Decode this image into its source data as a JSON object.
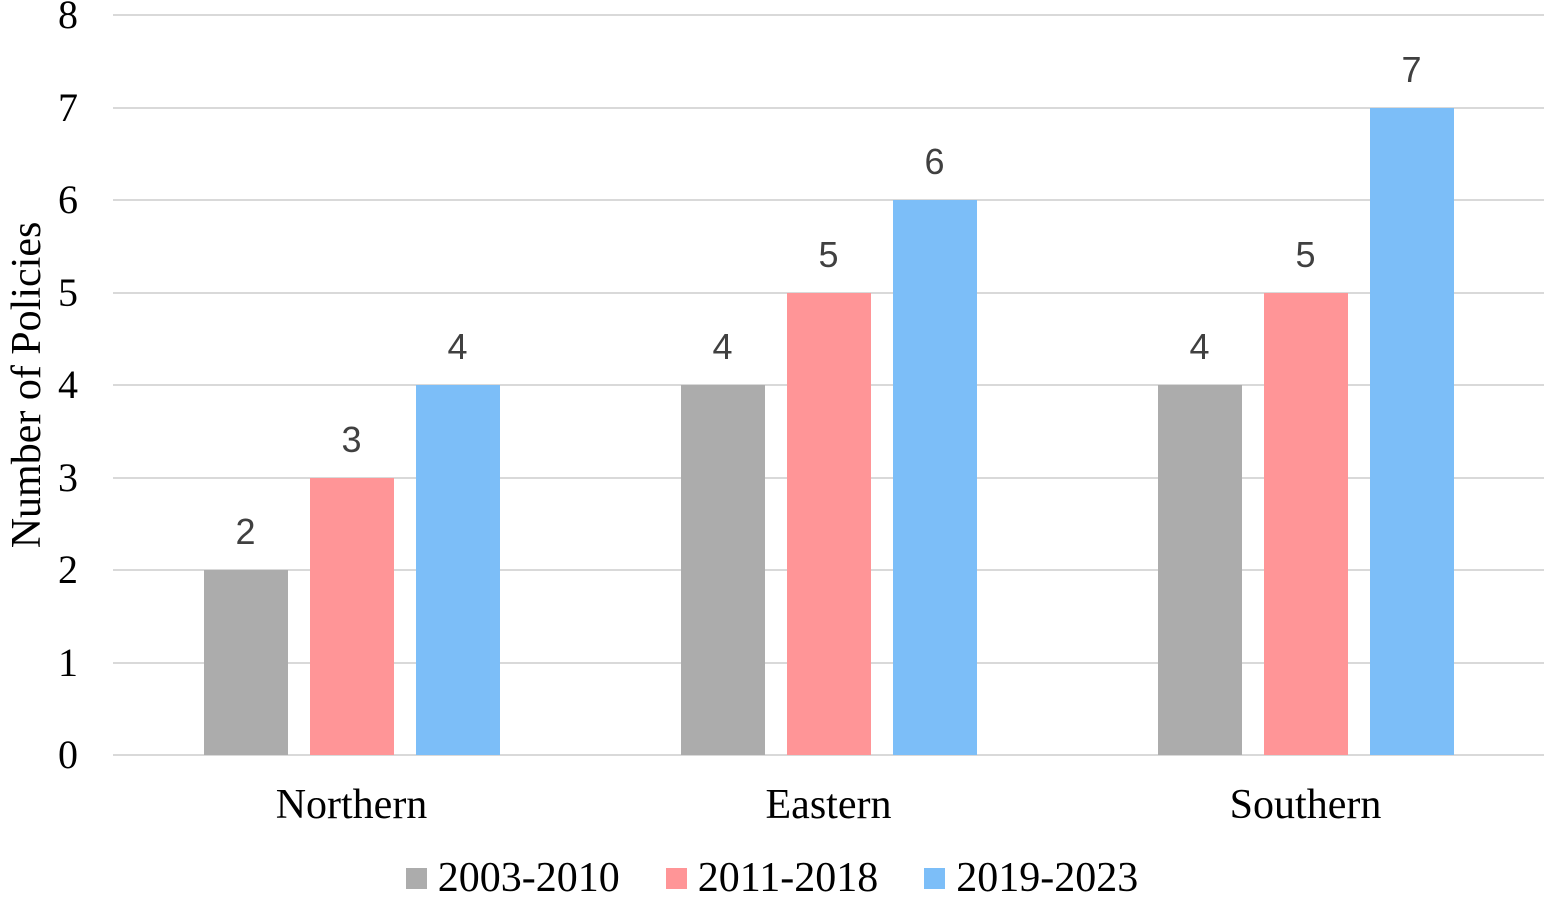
{
  "chart_data": {
    "type": "bar",
    "title": "",
    "categories": [
      "Northern",
      "Eastern",
      "Southern"
    ],
    "series": [
      {
        "name": "2003-2010",
        "color": "#ACACAC",
        "values": [
          2,
          4,
          4
        ]
      },
      {
        "name": "2011-2018",
        "color": "#FF9597",
        "values": [
          3,
          5,
          5
        ]
      },
      {
        "name": "2019-2023",
        "color": "#7CBEF8",
        "values": [
          4,
          6,
          7
        ]
      }
    ],
    "xlabel": "",
    "ylabel": "Number of Policies",
    "ylim": [
      0,
      8
    ],
    "yticks": [
      0,
      1,
      2,
      3,
      4,
      5,
      6,
      7,
      8
    ],
    "grid": true,
    "data_labels": true,
    "legend_position": "bottom"
  },
  "colors": {
    "background": "#FFFFFF",
    "gridline": "#D9D9D9",
    "axis_text": "#000000",
    "data_label": "#404040"
  }
}
